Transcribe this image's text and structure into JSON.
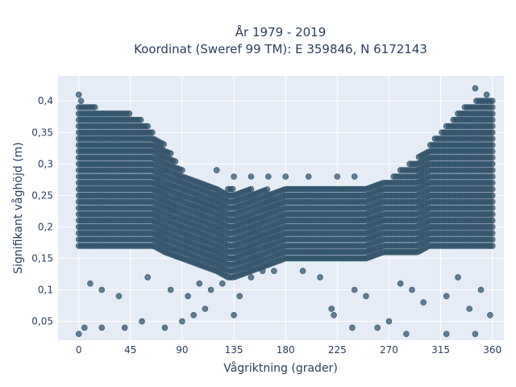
{
  "chart_data": {
    "type": "scatter",
    "title": "År 1979 - 2019",
    "subtitle": "Koordinat (Sweref 99 TM): E 359846, N 6172143",
    "xlabel": "Vågriktning (grader)",
    "ylabel": "Signifikant våghöjd (m)",
    "xlim": [
      -18,
      370
    ],
    "ylim": [
      0.02,
      0.44
    ],
    "x_ticks": [
      0,
      45,
      90,
      135,
      180,
      225,
      270,
      315,
      360
    ],
    "x_tick_labels": [
      "0",
      "45",
      "90",
      "135",
      "180",
      "225",
      "270",
      "315",
      "360"
    ],
    "y_ticks": [
      0.05,
      0.1,
      0.15,
      0.2,
      0.25,
      0.3,
      0.35,
      0.4
    ],
    "y_tick_labels": [
      "0,05",
      "0,1",
      "0,15",
      "0,2",
      "0,25",
      "0,3",
      "0,35",
      "0,4"
    ],
    "grid": true,
    "legend": "none",
    "marker_color": "#2e5068",
    "plot_background": "#e5ecf6",
    "dense_band": {
      "x": [
        0,
        15,
        30,
        45,
        55,
        65,
        75,
        90,
        105,
        120,
        130,
        135,
        150,
        165,
        180,
        200,
        225,
        250,
        265,
        280,
        295,
        305,
        315,
        325,
        335,
        345,
        360
      ],
      "y_min": [
        0.17,
        0.17,
        0.17,
        0.17,
        0.17,
        0.17,
        0.16,
        0.15,
        0.14,
        0.13,
        0.12,
        0.12,
        0.13,
        0.14,
        0.15,
        0.15,
        0.15,
        0.15,
        0.16,
        0.16,
        0.16,
        0.17,
        0.17,
        0.17,
        0.17,
        0.17,
        0.17
      ],
      "y_max": [
        0.39,
        0.39,
        0.38,
        0.38,
        0.37,
        0.35,
        0.33,
        0.29,
        0.27,
        0.26,
        0.26,
        0.26,
        0.26,
        0.26,
        0.26,
        0.26,
        0.26,
        0.26,
        0.27,
        0.29,
        0.31,
        0.33,
        0.35,
        0.37,
        0.39,
        0.4,
        0.4
      ]
    },
    "points": [
      [
        0,
        0.41
      ],
      [
        2,
        0.4
      ],
      [
        345,
        0.42
      ],
      [
        355,
        0.41
      ],
      [
        0,
        0.03
      ],
      [
        320,
        0.03
      ],
      [
        345,
        0.03
      ],
      [
        285,
        0.03
      ],
      [
        120,
        0.29
      ],
      [
        135,
        0.28
      ],
      [
        150,
        0.28
      ],
      [
        165,
        0.28
      ],
      [
        180,
        0.28
      ],
      [
        200,
        0.28
      ],
      [
        225,
        0.28
      ],
      [
        240,
        0.28
      ],
      [
        135,
        0.06
      ],
      [
        140,
        0.09
      ],
      [
        222,
        0.06
      ],
      [
        220,
        0.07
      ],
      [
        238,
        0.04
      ],
      [
        260,
        0.04
      ],
      [
        270,
        0.05
      ],
      [
        5,
        0.04
      ],
      [
        20,
        0.04
      ],
      [
        40,
        0.04
      ],
      [
        55,
        0.05
      ],
      [
        75,
        0.04
      ],
      [
        90,
        0.05
      ],
      [
        100,
        0.06
      ],
      [
        110,
        0.07
      ],
      [
        10,
        0.11
      ],
      [
        20,
        0.1
      ],
      [
        35,
        0.09
      ],
      [
        60,
        0.12
      ],
      [
        80,
        0.1
      ],
      [
        95,
        0.09
      ],
      [
        105,
        0.11
      ],
      [
        115,
        0.1
      ],
      [
        125,
        0.11
      ],
      [
        150,
        0.12
      ],
      [
        160,
        0.13
      ],
      [
        170,
        0.13
      ],
      [
        195,
        0.13
      ],
      [
        210,
        0.12
      ],
      [
        240,
        0.1
      ],
      [
        250,
        0.09
      ],
      [
        280,
        0.11
      ],
      [
        290,
        0.1
      ],
      [
        300,
        0.08
      ],
      [
        320,
        0.09
      ],
      [
        340,
        0.07
      ],
      [
        358,
        0.06
      ],
      [
        350,
        0.1
      ],
      [
        330,
        0.12
      ]
    ]
  }
}
